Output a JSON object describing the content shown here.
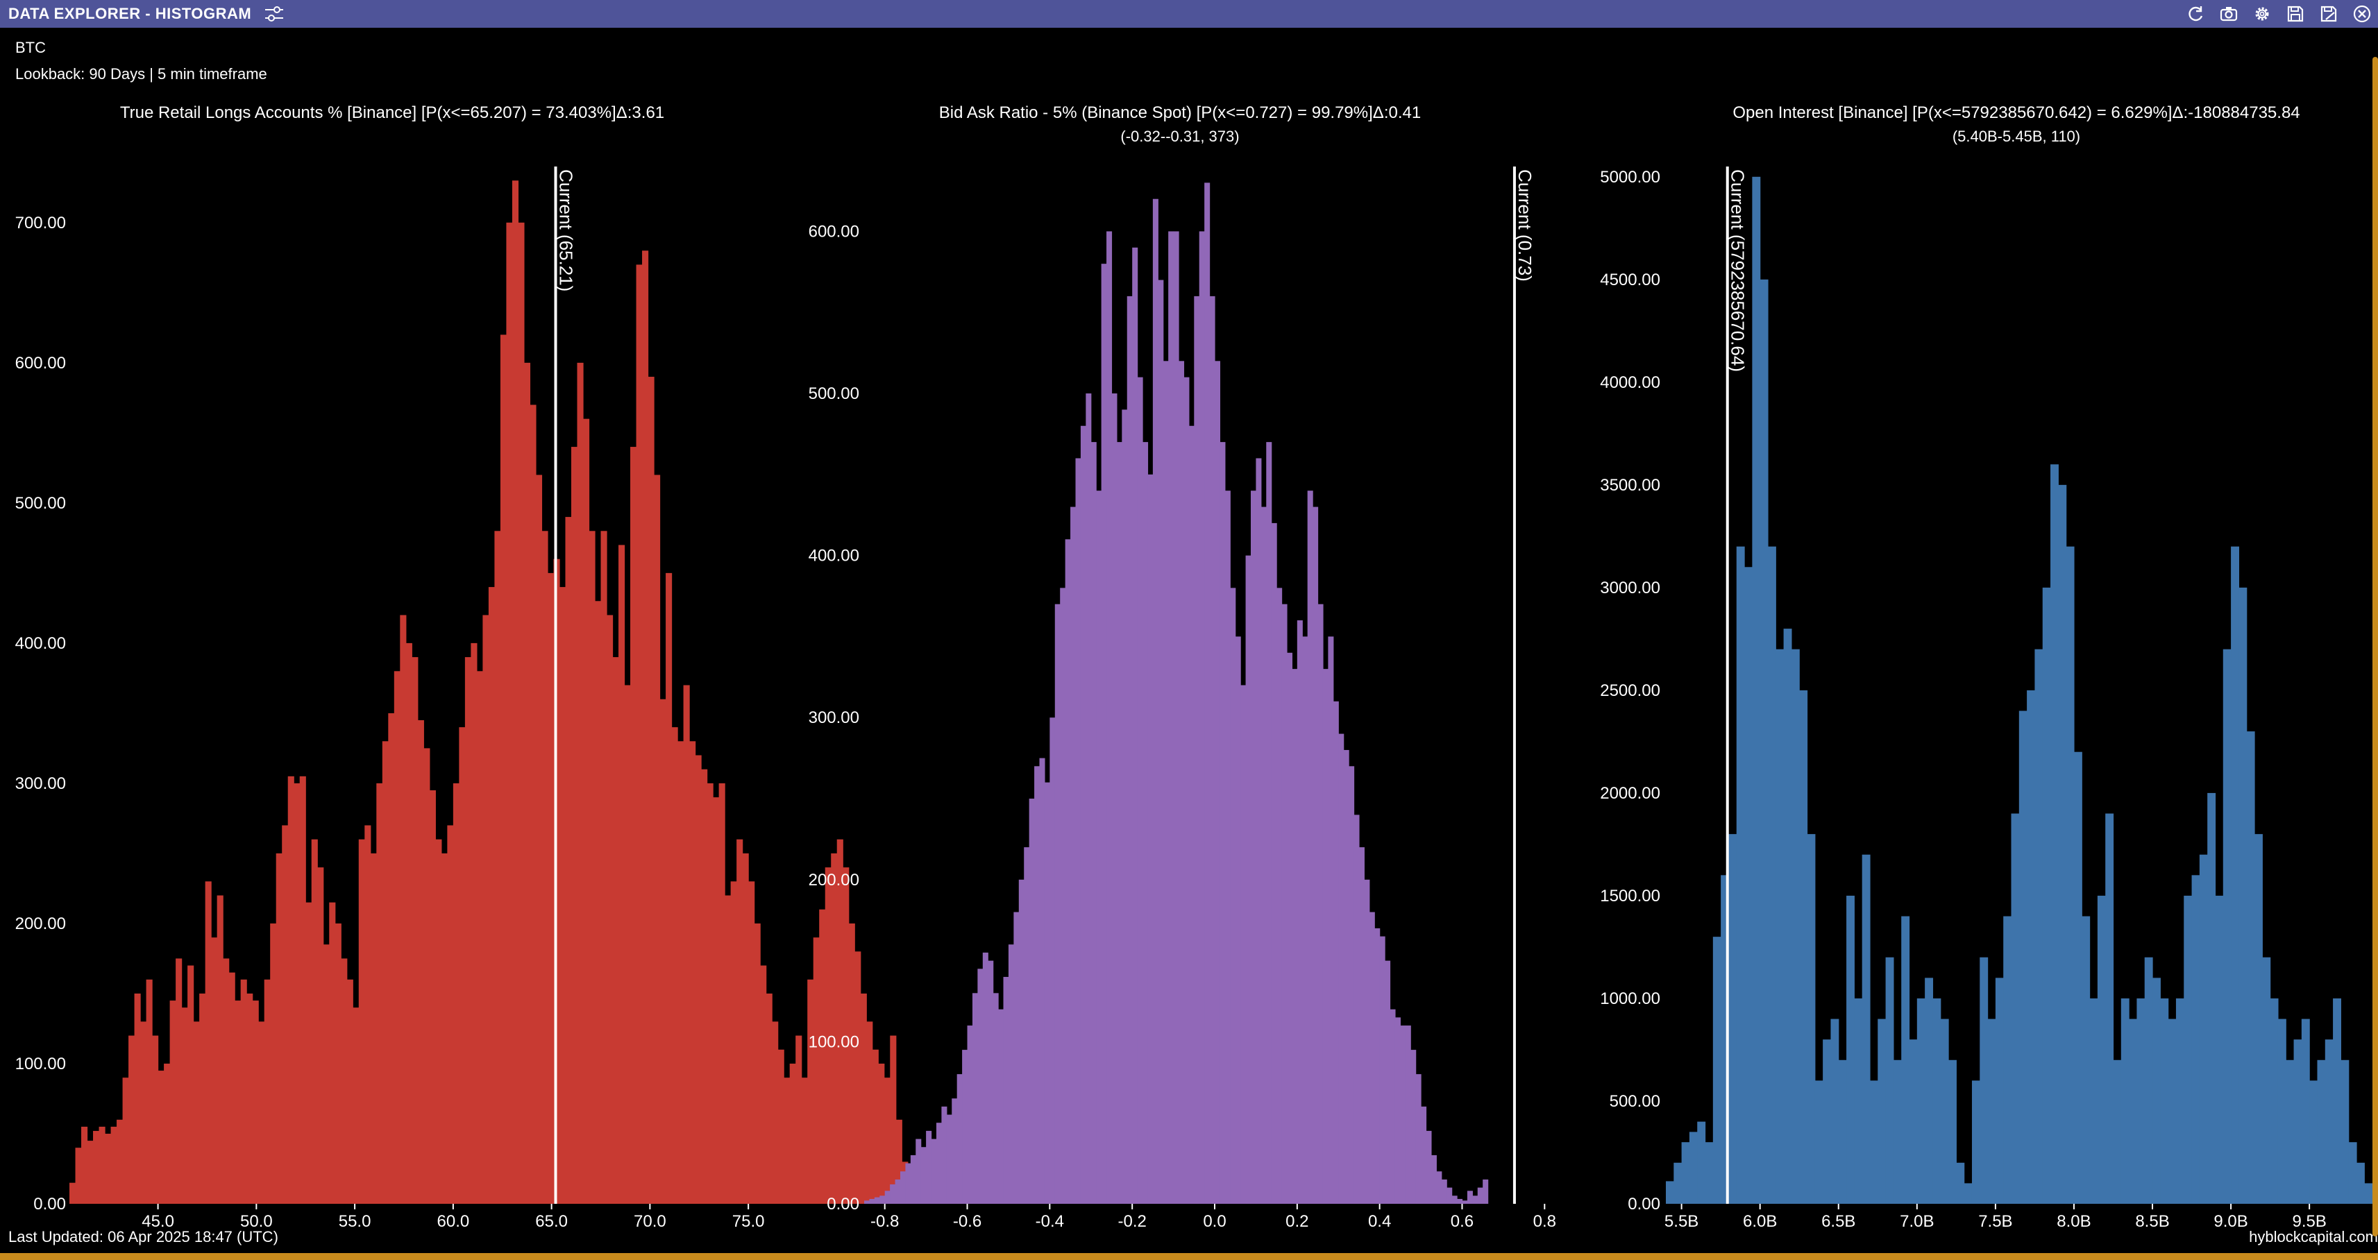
{
  "window": {
    "title": "DATA EXPLORER - HISTOGRAM",
    "icons": [
      "sliders-icon",
      "refresh-icon",
      "camera-icon",
      "gear-icon",
      "save-icon",
      "save-as-icon",
      "close-icon"
    ]
  },
  "header": {
    "asset": "BTC",
    "lookback": "Lookback: 90 Days | 5 min timeframe"
  },
  "footer": {
    "last_updated": "Last Updated: 06 Apr 2025 18:47 (UTC)",
    "brand": "hyblockcapital.com"
  },
  "colors": {
    "titlebar": "#4f5499",
    "accent": "#c88b1d",
    "red": "#c83a32",
    "purple": "#9168b8",
    "blue": "#3e74ab",
    "current_line": "#ffffff"
  },
  "chart_data": [
    {
      "type": "bar",
      "title": "True Retail Longs Accounts % [Binance] [P(x<=65.207) = 73.403%]Δ:3.61",
      "subtitle": "",
      "color": "#c83a32",
      "xlim": [
        40.5,
        76.3
      ],
      "ylim": [
        0,
        740
      ],
      "yticks": [
        0,
        100,
        200,
        300,
        400,
        500,
        600,
        700
      ],
      "ytick_labels": [
        "0.00",
        "100.00",
        "200.00",
        "300.00",
        "400.00",
        "500.00",
        "600.00",
        "700.00"
      ],
      "xticks": [
        45,
        50,
        55,
        60,
        65,
        70,
        75
      ],
      "xtick_labels": [
        "45.0",
        "50.0",
        "55.0",
        "60.0",
        "65.0",
        "70.0",
        "75.0"
      ],
      "bin_start": 40.5,
      "bin_width": 0.3,
      "values": [
        15,
        40,
        55,
        45,
        52,
        55,
        50,
        55,
        60,
        90,
        120,
        150,
        130,
        160,
        120,
        95,
        100,
        145,
        175,
        140,
        170,
        130,
        150,
        230,
        190,
        220,
        175,
        165,
        145,
        160,
        150,
        145,
        130,
        160,
        200,
        250,
        270,
        305,
        300,
        305,
        215,
        260,
        240,
        185,
        215,
        200,
        175,
        160,
        140,
        260,
        270,
        250,
        300,
        330,
        350,
        380,
        420,
        400,
        390,
        345,
        325,
        295,
        260,
        250,
        270,
        300,
        340,
        390,
        400,
        380,
        420,
        440,
        480,
        620,
        700,
        730,
        700,
        600,
        570,
        520,
        480,
        450,
        460,
        440,
        490,
        540,
        600,
        560,
        480,
        430,
        480,
        420,
        390,
        470,
        370,
        540,
        670,
        680,
        590,
        520,
        360,
        450,
        340,
        330,
        370,
        330,
        320,
        310,
        300,
        290,
        300,
        220,
        230,
        260,
        250,
        230,
        200,
        170,
        150,
        130,
        110,
        90,
        100,
        120,
        90,
        160,
        190,
        210,
        240,
        250,
        260,
        240,
        200,
        180,
        150,
        130,
        110,
        100,
        90,
        120,
        60,
        30,
        10
      ],
      "current": 65.207,
      "current_label": "Current (65.21)"
    },
    {
      "type": "bar",
      "title": "Bid Ask Ratio - 5% (Binance Spot) [P(x<=0.727) = 99.79%]Δ:0.41",
      "subtitle": "(-0.32--0.31, 373)",
      "color": "#9168b8",
      "xlim": [
        -0.85,
        0.85
      ],
      "ylim": [
        0,
        640
      ],
      "yticks": [
        0,
        100,
        200,
        300,
        400,
        500,
        600
      ],
      "ytick_labels": [
        "0.00",
        "100.00",
        "200.00",
        "300.00",
        "400.00",
        "500.00",
        "600.00"
      ],
      "xticks": [
        -0.8,
        -0.6,
        -0.4,
        -0.2,
        0.0,
        0.2,
        0.4,
        0.6,
        0.8
      ],
      "xtick_labels": [
        "-0.8",
        "-0.6",
        "-0.4",
        "-0.2",
        "0.0",
        "0.2",
        "0.4",
        "0.6",
        "0.8"
      ],
      "bin_start": -0.85,
      "bin_width": 0.0125,
      "values": [
        2,
        3,
        4,
        5,
        8,
        12,
        15,
        20,
        25,
        30,
        40,
        35,
        45,
        40,
        50,
        60,
        55,
        65,
        80,
        95,
        110,
        130,
        145,
        155,
        150,
        130,
        120,
        140,
        160,
        180,
        200,
        220,
        250,
        270,
        275,
        260,
        300,
        370,
        380,
        410,
        430,
        460,
        480,
        500,
        470,
        440,
        580,
        600,
        500,
        470,
        490,
        560,
        590,
        510,
        470,
        450,
        620,
        570,
        520,
        600,
        600,
        520,
        510,
        480,
        560,
        600,
        630,
        560,
        520,
        470,
        440,
        380,
        350,
        320,
        400,
        440,
        460,
        430,
        470,
        420,
        380,
        370,
        340,
        330,
        360,
        350,
        440,
        430,
        370,
        330,
        350,
        310,
        290,
        280,
        270,
        240,
        220,
        200,
        180,
        170,
        165,
        150,
        120,
        115,
        110,
        110,
        95,
        80,
        60,
        45,
        30,
        20,
        15,
        10,
        5,
        3,
        2,
        8,
        5,
        10,
        15
      ],
      "current": 0.727,
      "current_label": "Current (0.73)"
    },
    {
      "type": "bar",
      "title": "Open Interest [Binance] [P(x<=5792385670.642) = 6.629%]Δ:-180884735.84",
      "subtitle": "(5.40B-5.45B, 110)",
      "color": "#3e74ab",
      "xlim": [
        5.4,
        9.8
      ],
      "ylim": [
        0,
        5050
      ],
      "yticks": [
        0,
        500,
        1000,
        1500,
        2000,
        2500,
        3000,
        3500,
        4000,
        4500,
        5000
      ],
      "ytick_labels": [
        "0.00",
        "500.00",
        "1000.00",
        "1500.00",
        "2000.00",
        "2500.00",
        "3000.00",
        "3500.00",
        "4000.00",
        "4500.00",
        "5000.00"
      ],
      "xticks": [
        5.5,
        6.0,
        6.5,
        7.0,
        7.5,
        8.0,
        8.5,
        9.0,
        9.5
      ],
      "xtick_labels": [
        "5.5B",
        "6.0B",
        "6.5B",
        "7.0B",
        "7.5B",
        "8.0B",
        "8.5B",
        "9.0B",
        "9.5B"
      ],
      "bin_start": 5.4,
      "bin_width": 0.05,
      "values": [
        110,
        200,
        300,
        350,
        400,
        300,
        1300,
        1600,
        1800,
        3200,
        3100,
        5000,
        4500,
        3200,
        2700,
        2800,
        2700,
        2500,
        1800,
        600,
        800,
        900,
        700,
        1500,
        1000,
        1700,
        600,
        900,
        1200,
        700,
        1400,
        800,
        1000,
        1100,
        1000,
        900,
        700,
        200,
        100,
        600,
        1200,
        900,
        1100,
        1400,
        1900,
        2400,
        2500,
        2700,
        3000,
        3600,
        3500,
        3200,
        2200,
        1400,
        1000,
        1500,
        1900,
        700,
        1000,
        900,
        1000,
        1200,
        1100,
        1000,
        900,
        1000,
        1500,
        1600,
        1700,
        2000,
        1500,
        2700,
        3200,
        3000,
        2300,
        1800,
        1200,
        1000,
        900,
        700,
        800,
        900,
        600,
        700,
        800,
        1000,
        700,
        300,
        200,
        100
      ],
      "current": 5.792385670642,
      "current_label": "Current (5792385670.64)"
    }
  ]
}
